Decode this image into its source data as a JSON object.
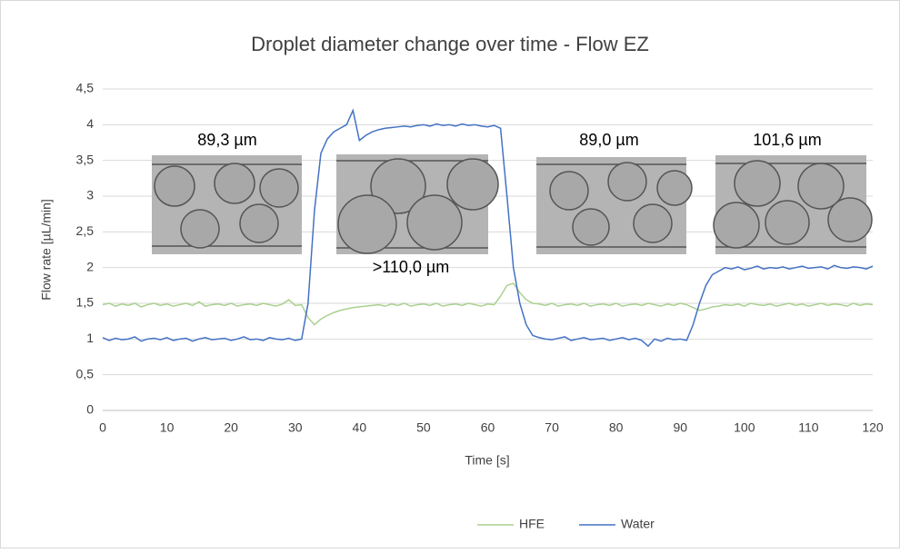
{
  "chart_data": {
    "type": "line",
    "title": "Droplet diameter change over time - Flow EZ",
    "x_label": "Time [s]",
    "y_label": "Flow rate [µL/min]",
    "xlim": [
      0,
      120
    ],
    "xticks": [
      0,
      10,
      20,
      30,
      40,
      50,
      60,
      70,
      80,
      90,
      100,
      110,
      120
    ],
    "ylim": [
      0,
      4.5
    ],
    "yticks": [
      0,
      {
        "value": 0.5,
        "label": "0,5"
      },
      1,
      {
        "value": 1.5,
        "label": "1,5"
      },
      2,
      {
        "value": 2.5,
        "label": "2,5"
      },
      3,
      {
        "value": 3.5,
        "label": "3,5"
      },
      4,
      {
        "value": 4.5,
        "label": "4,5"
      }
    ],
    "grid": true,
    "legend": "bottom",
    "annotations": [
      "89,3 µm",
      ">110,0 µm",
      "89,0 µm",
      "101,6 µm"
    ],
    "x": [
      0,
      1,
      2,
      3,
      4,
      5,
      6,
      7,
      8,
      9,
      10,
      11,
      12,
      13,
      14,
      15,
      16,
      17,
      18,
      19,
      20,
      21,
      22,
      23,
      24,
      25,
      26,
      27,
      28,
      29,
      30,
      31,
      32,
      33,
      34,
      35,
      36,
      37,
      38,
      39,
      40,
      41,
      42,
      43,
      44,
      45,
      46,
      47,
      48,
      49,
      50,
      51,
      52,
      53,
      54,
      55,
      56,
      57,
      58,
      59,
      60,
      61,
      62,
      63,
      64,
      65,
      66,
      67,
      68,
      69,
      70,
      71,
      72,
      73,
      74,
      75,
      76,
      77,
      78,
      79,
      80,
      81,
      82,
      83,
      84,
      85,
      86,
      87,
      88,
      89,
      90,
      91,
      92,
      93,
      94,
      95,
      96,
      97,
      98,
      99,
      100,
      101,
      102,
      103,
      104,
      105,
      106,
      107,
      108,
      109,
      110,
      111,
      112,
      113,
      114,
      115,
      116,
      117,
      118,
      119,
      120
    ],
    "series": [
      {
        "name": "HFE",
        "color": "#a9d18e",
        "values": [
          1.48,
          1.5,
          1.46,
          1.49,
          1.47,
          1.5,
          1.45,
          1.48,
          1.5,
          1.47,
          1.49,
          1.46,
          1.48,
          1.5,
          1.47,
          1.52,
          1.46,
          1.48,
          1.49,
          1.47,
          1.5,
          1.46,
          1.48,
          1.49,
          1.47,
          1.5,
          1.48,
          1.46,
          1.49,
          1.55,
          1.47,
          1.48,
          1.3,
          1.2,
          1.28,
          1.33,
          1.37,
          1.4,
          1.42,
          1.44,
          1.45,
          1.46,
          1.47,
          1.48,
          1.46,
          1.49,
          1.47,
          1.5,
          1.46,
          1.48,
          1.49,
          1.47,
          1.5,
          1.46,
          1.48,
          1.49,
          1.47,
          1.5,
          1.48,
          1.46,
          1.49,
          1.48,
          1.6,
          1.75,
          1.78,
          1.65,
          1.55,
          1.5,
          1.49,
          1.47,
          1.5,
          1.46,
          1.48,
          1.49,
          1.47,
          1.5,
          1.46,
          1.48,
          1.49,
          1.47,
          1.5,
          1.46,
          1.48,
          1.49,
          1.47,
          1.5,
          1.48,
          1.46,
          1.49,
          1.47,
          1.5,
          1.48,
          1.44,
          1.4,
          1.42,
          1.45,
          1.46,
          1.48,
          1.47,
          1.49,
          1.46,
          1.5,
          1.48,
          1.47,
          1.49,
          1.46,
          1.48,
          1.5,
          1.47,
          1.49,
          1.46,
          1.48,
          1.5,
          1.47,
          1.49,
          1.48,
          1.46,
          1.5,
          1.47,
          1.49,
          1.48
        ]
      },
      {
        "name": "Water",
        "color": "#4472c4",
        "values": [
          1.02,
          0.98,
          1.01,
          0.99,
          1.0,
          1.03,
          0.97,
          1.0,
          1.01,
          0.99,
          1.02,
          0.98,
          1.0,
          1.01,
          0.97,
          1.0,
          1.02,
          0.99,
          1.0,
          1.01,
          0.98,
          1.0,
          1.03,
          0.99,
          1.0,
          0.98,
          1.02,
          1.0,
          0.99,
          1.01,
          0.98,
          1.0,
          1.5,
          2.8,
          3.6,
          3.8,
          3.9,
          3.95,
          4.0,
          4.2,
          3.78,
          3.85,
          3.9,
          3.93,
          3.95,
          3.96,
          3.97,
          3.98,
          3.97,
          3.99,
          4.0,
          3.98,
          4.01,
          3.99,
          4.0,
          3.98,
          4.01,
          3.99,
          4.0,
          3.98,
          3.97,
          3.99,
          3.95,
          3.0,
          2.0,
          1.5,
          1.2,
          1.05,
          1.02,
          1.0,
          0.99,
          1.01,
          1.03,
          0.98,
          1.0,
          1.02,
          0.99,
          1.0,
          1.01,
          0.98,
          1.0,
          1.02,
          0.99,
          1.01,
          0.98,
          0.9,
          1.0,
          0.97,
          1.01,
          0.99,
          1.0,
          0.98,
          1.2,
          1.5,
          1.75,
          1.9,
          1.95,
          2.0,
          1.98,
          2.01,
          1.97,
          1.99,
          2.02,
          1.98,
          2.0,
          1.99,
          2.01,
          1.98,
          2.0,
          2.02,
          1.99,
          2.0,
          2.01,
          1.98,
          2.03,
          2.0,
          1.99,
          2.01,
          2.0,
          1.98,
          2.02
        ]
      }
    ]
  }
}
